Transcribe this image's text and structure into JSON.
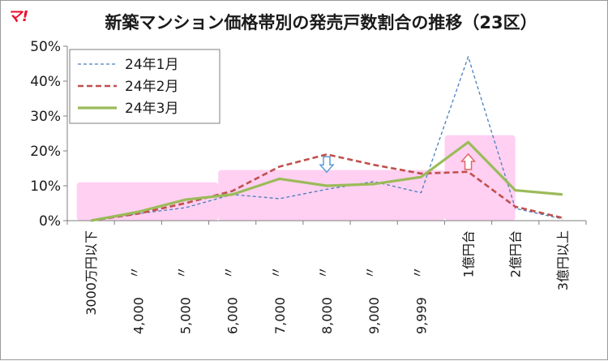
{
  "logo": "マ!",
  "chart_data": {
    "type": "line",
    "title": "新築マンション価格帯別の発売戸数割合の推移（23区）",
    "categories": [
      "3000万円以下",
      "〃4,000",
      "〃5,000",
      "〃6,000",
      "〃7,000",
      "〃8,000",
      "〃9,000",
      "〃9,999",
      "1億円台",
      "2億円台",
      "3億円以上"
    ],
    "tick_labels": [
      {
        "mark": "",
        "value": "3000万円以下"
      },
      {
        "mark": "〃",
        "value": "4,000"
      },
      {
        "mark": "〃",
        "value": "5,000"
      },
      {
        "mark": "〃",
        "value": "6,000"
      },
      {
        "mark": "〃",
        "value": "7,000"
      },
      {
        "mark": "〃",
        "value": "8,000"
      },
      {
        "mark": "〃",
        "value": "9,000"
      },
      {
        "mark": "〃",
        "value": "9,999"
      },
      {
        "mark": "",
        "value": "1億円台"
      },
      {
        "mark": "",
        "value": "2億円台"
      },
      {
        "mark": "",
        "value": "3億円以上"
      }
    ],
    "ylim": [
      0,
      50
    ],
    "yticks": [
      "0%",
      "10%",
      "20%",
      "30%",
      "40%",
      "50%"
    ],
    "series": [
      {
        "name": "24年1月",
        "values": [
          0,
          2,
          3.7,
          7.5,
          6.3,
          9,
          11.2,
          8,
          47,
          3.5,
          0.5
        ],
        "color": "#4a7ebb",
        "dash": "dashed-thin"
      },
      {
        "name": "24年2月",
        "values": [
          0,
          2,
          5,
          8.5,
          15.5,
          19,
          16,
          13.5,
          14,
          4,
          0.8
        ],
        "color": "#c0504d",
        "dash": "dashed-thick"
      },
      {
        "name": "24年3月",
        "values": [
          0,
          2.5,
          6,
          7.5,
          12,
          10,
          10.5,
          12.5,
          22.5,
          8.7,
          7.5
        ],
        "color": "#9bbb59",
        "dash": "solid"
      }
    ],
    "legend": "top-left",
    "grid": false,
    "highlights": [
      {
        "from": -0.3,
        "to": 2.7,
        "top": 11,
        "color": "#ffc8f0"
      },
      {
        "from": 2.7,
        "to": 7.5,
        "top": 14.5,
        "color": "#ffc8f0"
      },
      {
        "from": 7.5,
        "to": 9.0,
        "top": 24.5,
        "color": "#ffc8f0"
      }
    ],
    "annotations": [
      {
        "type": "arrow-down",
        "category": 5,
        "value": 16,
        "color": "#5b9bd5"
      },
      {
        "type": "arrow-up",
        "category": 8,
        "value": 17,
        "color": "#e06666"
      }
    ]
  }
}
